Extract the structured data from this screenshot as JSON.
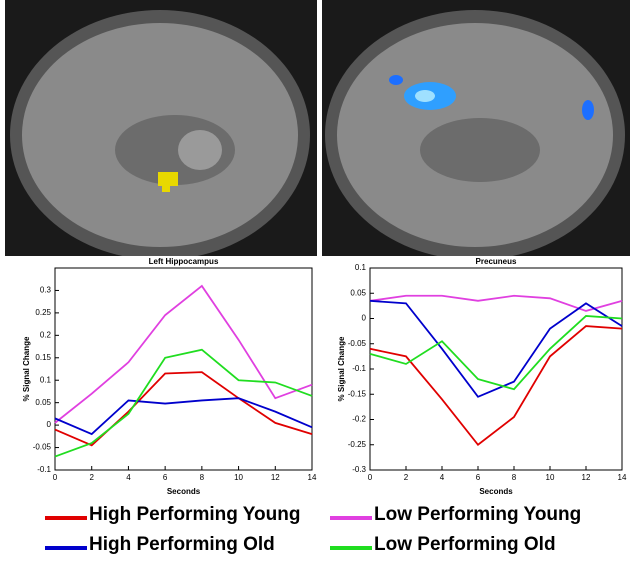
{
  "chart_data": [
    {
      "type": "line",
      "title": "Left Hippocampus",
      "xlabel": "Seconds",
      "ylabel": "% Signal Change",
      "x": [
        0,
        2,
        4,
        6,
        8,
        10,
        12,
        14
      ],
      "xlim": [
        0,
        14
      ],
      "xticks": [
        0,
        2,
        4,
        6,
        8,
        10,
        12,
        14
      ],
      "ylim": [
        -0.1,
        0.35
      ],
      "yticks": [
        -0.1,
        -0.05,
        0,
        0.05,
        0.1,
        0.15,
        0.2,
        0.25,
        0.3
      ],
      "series": [
        {
          "name": "High Performing Young",
          "color": "#e00000",
          "values": [
            -0.01,
            -0.045,
            0.03,
            0.115,
            0.118,
            0.06,
            0.005,
            -0.02
          ]
        },
        {
          "name": "Low Performing Young",
          "color": "#e040e0",
          "values": [
            0.005,
            0.07,
            0.14,
            0.245,
            0.31,
            0.19,
            0.06,
            0.09
          ]
        },
        {
          "name": "High Performing Old",
          "color": "#0000cc",
          "values": [
            0.015,
            -0.02,
            0.055,
            0.048,
            0.055,
            0.06,
            0.03,
            -0.005
          ]
        },
        {
          "name": "Low Performing Old",
          "color": "#20dd20",
          "values": [
            -0.07,
            -0.04,
            0.025,
            0.15,
            0.168,
            0.1,
            0.095,
            0.065
          ]
        }
      ]
    },
    {
      "type": "line",
      "title": "Precuneus",
      "xlabel": "Seconds",
      "ylabel": "% Signal Change",
      "x": [
        0,
        2,
        4,
        6,
        8,
        10,
        12,
        14
      ],
      "xlim": [
        0,
        14
      ],
      "xticks": [
        0,
        2,
        4,
        6,
        8,
        10,
        12,
        14
      ],
      "ylim": [
        -0.3,
        0.1
      ],
      "yticks": [
        -0.3,
        -0.25,
        -0.2,
        -0.15,
        -0.1,
        -0.05,
        0,
        0.05,
        0.1
      ],
      "series": [
        {
          "name": "High Performing Young",
          "color": "#e00000",
          "values": [
            -0.06,
            -0.075,
            -0.16,
            -0.25,
            -0.195,
            -0.075,
            -0.015,
            -0.02
          ]
        },
        {
          "name": "Low Performing Young",
          "color": "#e040e0",
          "values": [
            0.035,
            0.045,
            0.045,
            0.035,
            0.045,
            0.04,
            0.015,
            0.035
          ]
        },
        {
          "name": "High Performing Old",
          "color": "#0000cc",
          "values": [
            0.035,
            0.03,
            -0.06,
            -0.155,
            -0.125,
            -0.02,
            0.03,
            -0.015
          ]
        },
        {
          "name": "Low Performing Old",
          "color": "#20dd20",
          "values": [
            -0.07,
            -0.09,
            -0.045,
            -0.12,
            -0.14,
            -0.06,
            0.005,
            0.0
          ]
        }
      ]
    }
  ]
}
